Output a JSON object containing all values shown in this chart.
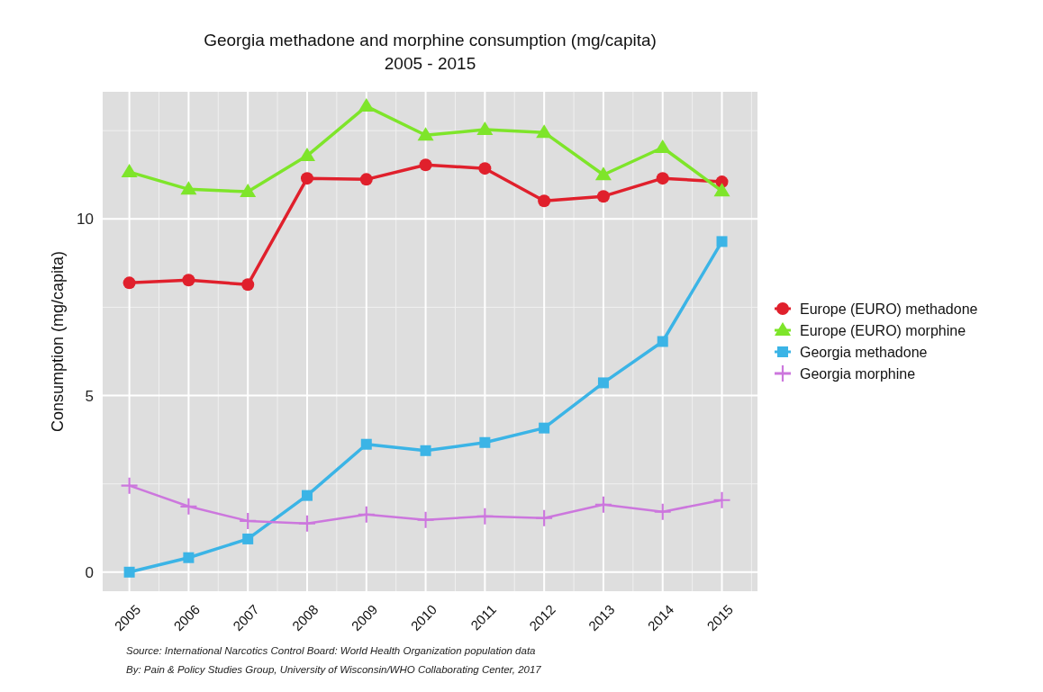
{
  "chart_data": {
    "type": "line",
    "title": "Georgia methadone and morphine consumption (mg/capita)",
    "subtitle": "2005 - 2015",
    "ylabel": "Consumption (mg/capita)",
    "x": [
      2005,
      2006,
      2007,
      2008,
      2009,
      2010,
      2011,
      2012,
      2013,
      2014,
      2015
    ],
    "xlim": [
      2004.55,
      2015.6
    ],
    "xticks": [
      2005,
      2006,
      2007,
      2008,
      2009,
      2010,
      2011,
      2012,
      2013,
      2014,
      2015
    ],
    "ylim": [
      -0.54,
      13.6
    ],
    "yticks": [
      0,
      5,
      10
    ],
    "grid": true,
    "legend": "right",
    "series": [
      {
        "name": "Europe (EURO) methadone",
        "color": "#e0202c",
        "marker": "circle",
        "values": [
          8.19,
          8.27,
          8.14,
          11.15,
          11.12,
          11.53,
          11.43,
          10.51,
          10.64,
          11.15,
          11.05
        ]
      },
      {
        "name": "Europe (EURO) morphine",
        "color": "#7ee52a",
        "marker": "triangle",
        "values": [
          11.33,
          10.84,
          10.77,
          11.79,
          13.19,
          12.37,
          12.53,
          12.45,
          11.25,
          12.02,
          10.79
        ]
      },
      {
        "name": "Georgia methadone",
        "color": "#3bb4e6",
        "marker": "square",
        "values": [
          0,
          0.41,
          0.94,
          2.17,
          3.62,
          3.44,
          3.67,
          4.08,
          5.36,
          6.53,
          9.36
        ]
      },
      {
        "name": "Georgia morphine",
        "color": "#cc77dd",
        "marker": "cross",
        "values": [
          2.45,
          1.86,
          1.45,
          1.38,
          1.63,
          1.48,
          1.58,
          1.53,
          1.91,
          1.71,
          2.04
        ]
      }
    ],
    "annotations": [
      "Source: International Narcotics Control Board: World Health Organization population data",
      "By: Pain & Policy Studies Group, University of Wisconsin/WHO Collaborating Center, 2017"
    ]
  }
}
